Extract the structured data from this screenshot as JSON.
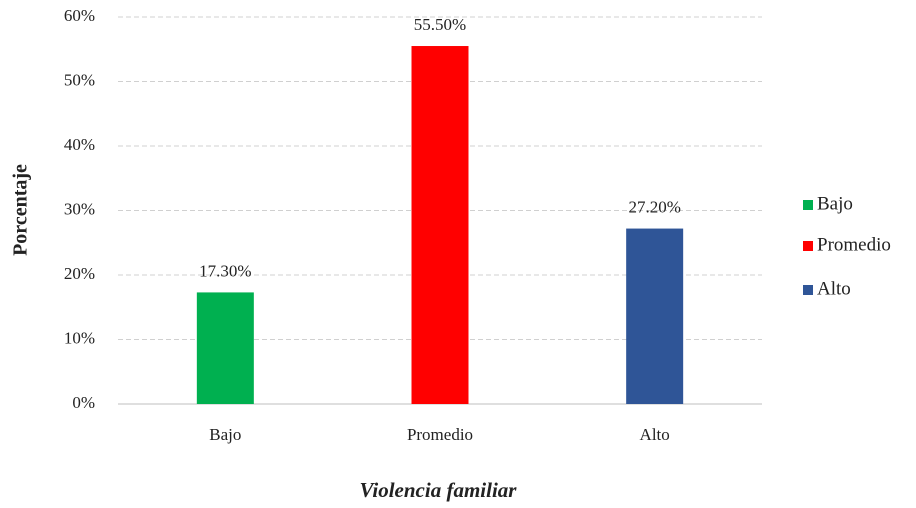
{
  "chart_data": {
    "type": "bar",
    "categories": [
      "Bajo",
      "Promedio",
      "Alto"
    ],
    "values": [
      17.3,
      55.5,
      27.2
    ],
    "value_labels": [
      "17.30%",
      "55.50%",
      "27.20%"
    ],
    "colors": [
      "#00b050",
      "#ff0000",
      "#2f5597"
    ],
    "xlabel": "Violencia familiar",
    "ylabel": "Porcentaje",
    "ylim": [
      0,
      60
    ],
    "yticks": [
      {
        "value": 0,
        "label": "0%"
      },
      {
        "value": 10,
        "label": "10%"
      },
      {
        "value": 20,
        "label": "20%"
      },
      {
        "value": 30,
        "label": "30%"
      },
      {
        "value": 40,
        "label": "40%"
      },
      {
        "value": 50,
        "label": "50%"
      },
      {
        "value": 60,
        "label": "60%"
      }
    ],
    "grid": true,
    "legend": "right"
  }
}
